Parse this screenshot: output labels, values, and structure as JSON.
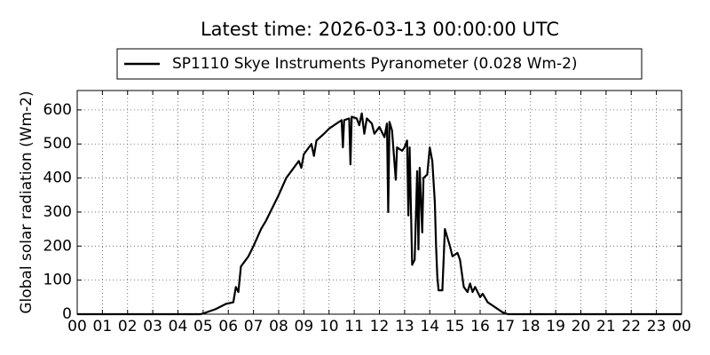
{
  "chart_data": {
    "type": "line",
    "title": "Latest time: 2026-03-13 00:00:00 UTC",
    "ylabel": "Global solar radiation (Wm-2)",
    "x": [
      0,
      4.9,
      5.0,
      5.5,
      5.9,
      6.2,
      6.3,
      6.4,
      6.5,
      6.8,
      7.0,
      7.3,
      7.5,
      7.8,
      8.0,
      8.3,
      8.6,
      8.8,
      8.9,
      9.0,
      9.3,
      9.4,
      9.5,
      9.8,
      10.0,
      10.3,
      10.5,
      10.55,
      10.6,
      10.8,
      10.85,
      10.9,
      11.1,
      11.2,
      11.3,
      11.4,
      11.5,
      11.7,
      11.8,
      12.0,
      12.2,
      12.3,
      12.35,
      12.4,
      12.5,
      12.65,
      12.7,
      12.9,
      13.0,
      13.1,
      13.15,
      13.2,
      13.3,
      13.4,
      13.5,
      13.55,
      13.6,
      13.7,
      13.75,
      13.9,
      14.0,
      14.1,
      14.2,
      14.25,
      14.3,
      14.35,
      14.5,
      14.6,
      14.8,
      14.9,
      15.1,
      15.2,
      15.35,
      15.5,
      15.6,
      15.7,
      15.8,
      16.0,
      16.1,
      16.3,
      16.6,
      16.9,
      17.1,
      24
    ],
    "series": [
      {
        "name": "SP1110 Skye Instruments Pyranometer (0.028 Wm-2)",
        "color": "#000000",
        "values": [
          0,
          0,
          2,
          15,
          30,
          35,
          80,
          65,
          140,
          170,
          200,
          250,
          275,
          320,
          350,
          400,
          430,
          450,
          430,
          470,
          500,
          465,
          510,
          530,
          545,
          560,
          570,
          490,
          570,
          575,
          440,
          580,
          575,
          555,
          590,
          530,
          575,
          560,
          530,
          550,
          520,
          560,
          300,
          565,
          540,
          395,
          490,
          480,
          490,
          510,
          290,
          490,
          145,
          160,
          420,
          190,
          430,
          240,
          400,
          410,
          490,
          450,
          330,
          200,
          110,
          70,
          70,
          250,
          200,
          170,
          180,
          160,
          80,
          65,
          90,
          65,
          80,
          50,
          60,
          35,
          20,
          5,
          0,
          0
        ]
      }
    ],
    "xlim": [
      0,
      24
    ],
    "xticks": [
      {
        "value": 0,
        "label": "00"
      },
      {
        "value": 1,
        "label": "01"
      },
      {
        "value": 2,
        "label": "02"
      },
      {
        "value": 3,
        "label": "03"
      },
      {
        "value": 4,
        "label": "04"
      },
      {
        "value": 5,
        "label": "05"
      },
      {
        "value": 6,
        "label": "06"
      },
      {
        "value": 7,
        "label": "07"
      },
      {
        "value": 8,
        "label": "08"
      },
      {
        "value": 9,
        "label": "09"
      },
      {
        "value": 10,
        "label": "10"
      },
      {
        "value": 11,
        "label": "11"
      },
      {
        "value": 12,
        "label": "12"
      },
      {
        "value": 13,
        "label": "13"
      },
      {
        "value": 14,
        "label": "14"
      },
      {
        "value": 15,
        "label": "15"
      },
      {
        "value": 16,
        "label": "16"
      },
      {
        "value": 17,
        "label": "17"
      },
      {
        "value": 18,
        "label": "18"
      },
      {
        "value": 19,
        "label": "19"
      },
      {
        "value": 20,
        "label": "20"
      },
      {
        "value": 21,
        "label": "21"
      },
      {
        "value": 22,
        "label": "22"
      },
      {
        "value": 23,
        "label": "23"
      },
      {
        "value": 24,
        "label": "00"
      }
    ],
    "ylim": [
      0,
      657
    ],
    "yticks": [
      0,
      100,
      200,
      300,
      400,
      500,
      600
    ],
    "grid": true,
    "legend": "top"
  }
}
